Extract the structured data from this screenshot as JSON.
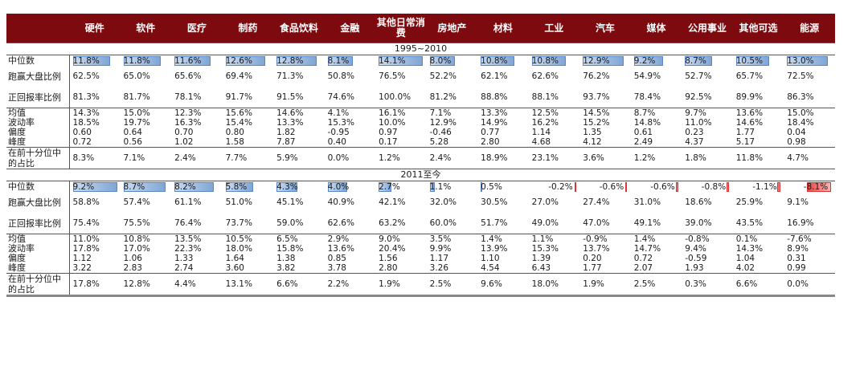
{
  "sectors": [
    "硬件",
    "软件",
    "医疗",
    "制药",
    "食品饮料",
    "金融",
    "其他日常消费",
    "房地产",
    "材料",
    "工业",
    "汽车",
    "媒体",
    "公用事业",
    "其他可选",
    "能源"
  ],
  "sections": [
    {
      "period": "1995~2010",
      "median": {
        "label": "中位数",
        "values": [
          "11.8%",
          "11.8%",
          "11.6%",
          "12.6%",
          "12.8%",
          "8.1%",
          "14.1%",
          "8.0%",
          "10.8%",
          "10.8%",
          "12.9%",
          "9.2%",
          "8.7%",
          "10.5%",
          "13.0%"
        ],
        "nums": [
          11.8,
          11.8,
          11.6,
          12.6,
          12.8,
          8.1,
          14.1,
          8.0,
          10.8,
          10.8,
          12.9,
          9.2,
          8.7,
          10.5,
          13.0
        ]
      },
      "rows_a": [
        {
          "label": "跑赢大盘比例",
          "values": [
            "62.5%",
            "65.0%",
            "65.6%",
            "69.4%",
            "71.3%",
            "50.8%",
            "76.5%",
            "52.2%",
            "62.1%",
            "62.6%",
            "76.2%",
            "54.9%",
            "52.7%",
            "65.7%",
            "72.5%"
          ]
        },
        {
          "label": "正回报率比例",
          "values": [
            "81.3%",
            "81.7%",
            "78.1%",
            "91.7%",
            "91.5%",
            "74.6%",
            "100.0%",
            "81.2%",
            "88.8%",
            "88.1%",
            "93.7%",
            "78.4%",
            "92.5%",
            "89.9%",
            "86.3%"
          ]
        }
      ],
      "rows_b": [
        {
          "label": "均值",
          "values": [
            "14.3%",
            "15.0%",
            "12.3%",
            "15.6%",
            "14.6%",
            "4.1%",
            "16.1%",
            "7.1%",
            "13.3%",
            "12.5%",
            "14.5%",
            "8.7%",
            "9.7%",
            "13.6%",
            "15.0%"
          ]
        },
        {
          "label": "波动率",
          "values": [
            "18.5%",
            "19.7%",
            "16.3%",
            "15.4%",
            "13.3%",
            "15.3%",
            "10.0%",
            "12.9%",
            "14.9%",
            "16.2%",
            "15.2%",
            "14.8%",
            "11.0%",
            "14.6%",
            "18.4%"
          ]
        },
        {
          "label": "偏度",
          "values": [
            "0.60",
            "0.64",
            "0.70",
            "0.80",
            "1.82",
            "-0.95",
            "0.97",
            "-0.46",
            "0.77",
            "1.14",
            "1.35",
            "0.61",
            "0.23",
            "1.77",
            "0.04"
          ]
        },
        {
          "label": "峰度",
          "values": [
            "0.72",
            "0.56",
            "1.02",
            "1.58",
            "7.87",
            "0.40",
            "0.17",
            "5.28",
            "2.80",
            "4.68",
            "4.12",
            "2.49",
            "4.37",
            "5.17",
            "0.98"
          ]
        }
      ],
      "top10": {
        "label": "在前十分位中的占比",
        "values": [
          "8.3%",
          "7.1%",
          "2.4%",
          "7.7%",
          "5.9%",
          "0.0%",
          "1.2%",
          "2.4%",
          "18.9%",
          "23.1%",
          "3.6%",
          "1.2%",
          "1.8%",
          "11.8%",
          "4.7%"
        ]
      }
    },
    {
      "period": "2011至今",
      "median": {
        "label": "中位数",
        "values": [
          "9.2%",
          "8.7%",
          "8.2%",
          "5.8%",
          "4.3%",
          "4.0%",
          "2.7%",
          "1.1%",
          "0.5%",
          "-0.2%",
          "-0.6%",
          "-0.6%",
          "-0.8%",
          "-1.1%",
          "-8.1%"
        ],
        "nums": [
          9.2,
          8.7,
          8.2,
          5.8,
          4.3,
          4.0,
          2.7,
          1.1,
          0.5,
          -0.2,
          -0.6,
          -0.6,
          -0.8,
          -1.1,
          -8.1
        ]
      },
      "rows_a": [
        {
          "label": "跑赢大盘比例",
          "values": [
            "58.8%",
            "57.4%",
            "61.1%",
            "51.0%",
            "45.1%",
            "40.9%",
            "42.1%",
            "32.0%",
            "30.5%",
            "27.0%",
            "27.4%",
            "31.0%",
            "18.6%",
            "25.9%",
            "9.1%"
          ]
        },
        {
          "label": "正回报率比例",
          "values": [
            "75.4%",
            "75.5%",
            "76.4%",
            "73.7%",
            "59.0%",
            "62.6%",
            "63.2%",
            "60.0%",
            "51.7%",
            "49.0%",
            "47.0%",
            "49.1%",
            "39.0%",
            "43.5%",
            "16.9%"
          ]
        }
      ],
      "rows_b": [
        {
          "label": "均值",
          "values": [
            "11.0%",
            "10.8%",
            "13.5%",
            "10.5%",
            "6.5%",
            "2.9%",
            "9.0%",
            "3.5%",
            "1.4%",
            "1.1%",
            "-0.9%",
            "1.4%",
            "-0.8%",
            "0.1%",
            "-7.6%"
          ]
        },
        {
          "label": "波动率",
          "values": [
            "17.8%",
            "17.0%",
            "22.3%",
            "18.0%",
            "15.8%",
            "13.6%",
            "20.4%",
            "9.9%",
            "13.9%",
            "15.3%",
            "13.7%",
            "14.7%",
            "9.4%",
            "14.3%",
            "8.9%"
          ]
        },
        {
          "label": "偏度",
          "values": [
            "1.12",
            "1.06",
            "1.33",
            "1.64",
            "1.38",
            "0.85",
            "1.56",
            "1.17",
            "1.10",
            "1.39",
            "0.20",
            "0.72",
            "-0.59",
            "1.04",
            "0.31"
          ]
        },
        {
          "label": "峰度",
          "values": [
            "3.22",
            "2.83",
            "2.74",
            "3.60",
            "3.82",
            "3.78",
            "2.80",
            "3.26",
            "4.54",
            "6.43",
            "1.77",
            "2.07",
            "1.93",
            "4.02",
            "0.99"
          ]
        }
      ],
      "top10": {
        "label": "在前十分位中的占比",
        "values": [
          "17.8%",
          "12.8%",
          "4.4%",
          "13.1%",
          "6.6%",
          "2.2%",
          "1.9%",
          "2.5%",
          "9.6%",
          "18.0%",
          "1.9%",
          "2.5%",
          "0.3%",
          "6.6%",
          "0.0%"
        ]
      }
    }
  ],
  "colors": {
    "header_bg": "#7c0a0e",
    "pos_bar": "#7fa6d6",
    "neg_bar": "#e74848"
  }
}
